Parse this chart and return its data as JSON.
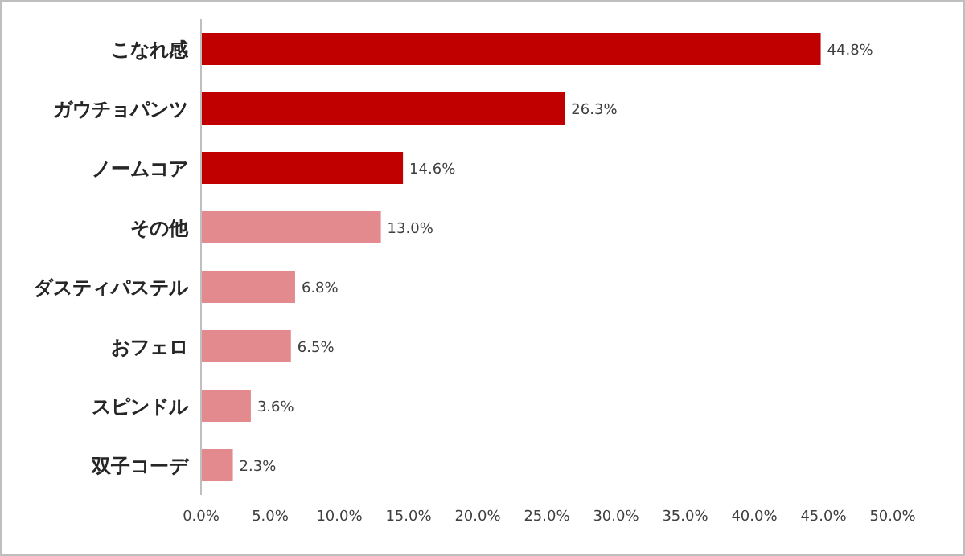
{
  "chart_data": {
    "type": "bar",
    "orientation": "horizontal",
    "categories": [
      "こなれ感",
      "ガウチョパンツ",
      "ノームコア",
      "その他",
      "ダスティパステル",
      "おフェロ",
      "スピンドル",
      "双子コーデ"
    ],
    "values": [
      44.8,
      26.3,
      14.6,
      13.0,
      6.8,
      6.5,
      3.6,
      2.3
    ],
    "colors": [
      "#c00000",
      "#c00000",
      "#c00000",
      "#e38a8f",
      "#e38a8f",
      "#e38a8f",
      "#e38a8f",
      "#e38a8f"
    ],
    "value_labels": [
      "44.8%",
      "26.3%",
      "14.6%",
      "13.0%",
      "6.8%",
      "6.5%",
      "3.6%",
      "2.3%"
    ],
    "xlim": [
      0,
      50
    ],
    "xticks": [
      {
        "value": 0,
        "label": "0.0%"
      },
      {
        "value": 5,
        "label": "5.0%"
      },
      {
        "value": 10,
        "label": "10.0%"
      },
      {
        "value": 15,
        "label": "15.0%"
      },
      {
        "value": 20,
        "label": "20.0%"
      },
      {
        "value": 25,
        "label": "25.0%"
      },
      {
        "value": 30,
        "label": "30.0%"
      },
      {
        "value": 35,
        "label": "35.0%"
      },
      {
        "value": 40,
        "label": "40.0%"
      },
      {
        "value": 45,
        "label": "45.0%"
      },
      {
        "value": 50,
        "label": "50.0%"
      }
    ]
  }
}
